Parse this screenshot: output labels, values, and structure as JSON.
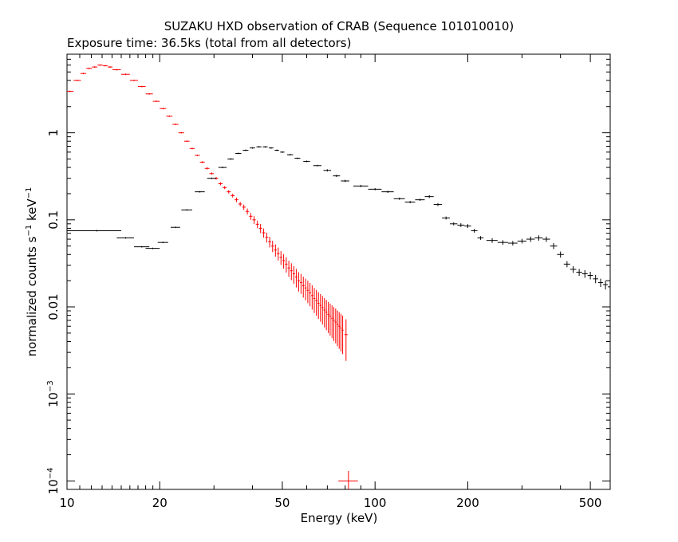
{
  "chart_data": {
    "type": "scatter",
    "title": "SUZAKU HXD observation of CRAB (Sequence 101010010)",
    "subtitle": "Exposure time: 36.5ks (total from all detectors)",
    "xlabel": "Energy (keV)",
    "ylabel_main": "normalized counts s",
    "ylabel_unit": "keV",
    "ylabel_exp": "−1",
    "x_scale": "log",
    "y_scale": "log",
    "xlim": [
      10,
      580
    ],
    "ylim": [
      8e-05,
      8
    ],
    "x_ticks": [
      {
        "value": 10,
        "label": "10"
      },
      {
        "value": 20,
        "label": "20"
      },
      {
        "value": 50,
        "label": "50"
      },
      {
        "value": 100,
        "label": "100"
      },
      {
        "value": 200,
        "label": "200"
      },
      {
        "value": 500,
        "label": "500"
      }
    ],
    "y_ticks": [
      {
        "value": 1,
        "label": "1"
      },
      {
        "value": 0.1,
        "label": "0.1"
      },
      {
        "value": 0.01,
        "label": "0.01"
      },
      {
        "value": 0.001,
        "mant": "10",
        "exp": "−3"
      },
      {
        "value": 0.0001,
        "mant": "10",
        "exp": "−4"
      }
    ],
    "grid": false,
    "legend": "none",
    "series": [
      {
        "color": "#ff0000",
        "x": [
          10.2,
          10.8,
          11.3,
          11.8,
          12.3,
          12.8,
          13.3,
          13.8,
          14.5,
          15.5,
          16.5,
          17.5,
          18.5,
          19.5,
          20.5,
          21.5,
          22.5,
          23.5,
          24.5,
          25.5,
          26.5,
          27.5,
          28.5,
          29.5,
          30.5,
          31.5,
          32.5,
          33.5,
          34.5,
          35.5,
          36.5,
          37.5,
          38.5,
          39.5,
          40.5,
          41.5,
          42.5,
          43.5,
          44.5,
          45.5,
          46.5,
          47.5,
          48.5,
          49.5,
          50.5,
          51.5,
          52.5,
          53.5,
          54.5,
          55.5,
          56.5,
          57.5,
          58.5,
          59.5,
          60.5,
          61.5,
          62.5,
          63.5,
          64.5,
          65.5,
          66.5,
          67.5,
          68.5,
          69.5,
          70.5,
          71.5,
          72.5,
          73.5,
          74.5,
          75.5,
          76.5,
          77.5,
          78.5,
          80.5
        ],
        "y": [
          3.0,
          4.0,
          4.8,
          5.5,
          5.7,
          6.0,
          5.9,
          5.7,
          5.3,
          4.7,
          4.0,
          3.4,
          2.8,
          2.3,
          1.9,
          1.55,
          1.25,
          1.0,
          0.8,
          0.66,
          0.55,
          0.46,
          0.39,
          0.34,
          0.3,
          0.26,
          0.235,
          0.21,
          0.19,
          0.17,
          0.152,
          0.14,
          0.125,
          0.11,
          0.1,
          0.089,
          0.08,
          0.071,
          0.063,
          0.056,
          0.05,
          0.045,
          0.041,
          0.037,
          0.034,
          0.031,
          0.028,
          0.026,
          0.024,
          0.022,
          0.02,
          0.019,
          0.0175,
          0.0165,
          0.0155,
          0.0145,
          0.0135,
          0.0125,
          0.0118,
          0.011,
          0.0104,
          0.0098,
          0.0092,
          0.0087,
          0.0082,
          0.0078,
          0.0074,
          0.007,
          0.0067,
          0.0063,
          0.006,
          0.0057,
          0.0054,
          0.0048
        ],
        "xerr": [
          0.3,
          0.3,
          0.25,
          0.25,
          0.25,
          0.25,
          0.25,
          0.25,
          0.45,
          0.5,
          0.5,
          0.5,
          0.5,
          0.5,
          0.5,
          0.5,
          0.5,
          0.5,
          0.5,
          0.5,
          0.5,
          0.5,
          0.5,
          0.5,
          0.5,
          0.5,
          0.5,
          0.5,
          0.5,
          0.5,
          0.5,
          0.5,
          0.5,
          0.5,
          0.5,
          0.5,
          0.5,
          0.5,
          0.5,
          0.5,
          0.5,
          0.5,
          0.5,
          0.5,
          0.5,
          0.5,
          0.5,
          0.5,
          0.5,
          0.5,
          0.5,
          0.5,
          0.5,
          0.5,
          0.5,
          0.5,
          0.5,
          0.5,
          0.5,
          0.5,
          0.5,
          0.5,
          0.5,
          0.5,
          0.5,
          0.5,
          0.5,
          0.5,
          0.5,
          0.5,
          0.5,
          0.5,
          0.5,
          1.0
        ],
        "yerr_frac": [
          0.02,
          0.02,
          0.02,
          0.02,
          0.02,
          0.02,
          0.02,
          0.02,
          0.02,
          0.02,
          0.02,
          0.02,
          0.02,
          0.02,
          0.02,
          0.02,
          0.02,
          0.02,
          0.02,
          0.02,
          0.02,
          0.025,
          0.03,
          0.03,
          0.035,
          0.04,
          0.04,
          0.045,
          0.05,
          0.06,
          0.06,
          0.07,
          0.08,
          0.09,
          0.1,
          0.1,
          0.12,
          0.12,
          0.13,
          0.14,
          0.15,
          0.16,
          0.17,
          0.18,
          0.19,
          0.2,
          0.21,
          0.22,
          0.23,
          0.24,
          0.25,
          0.26,
          0.27,
          0.28,
          0.29,
          0.3,
          0.31,
          0.32,
          0.33,
          0.34,
          0.35,
          0.36,
          0.37,
          0.38,
          0.39,
          0.4,
          0.41,
          0.42,
          0.43,
          0.44,
          0.45,
          0.46,
          0.47,
          0.5
        ]
      },
      {
        "color": "#ff0000",
        "x": [
          82
        ],
        "y": [
          0.0001
        ],
        "xerr": [
          6
        ],
        "yerr_frac": [
          0.3
        ]
      },
      {
        "color": "#000000",
        "x": [
          12.5,
          15.5,
          17.5,
          19.0,
          20.5,
          22.5,
          24.5,
          27.0,
          29.5,
          32.0,
          34.0,
          36.0,
          38.0,
          40.0,
          42.0,
          44.0,
          46.0,
          48.0,
          50.0,
          53.0,
          56.0,
          60.0,
          65.0,
          70.0,
          75.0,
          80.0,
          90.0,
          100.0,
          110.0,
          120.0,
          130.0,
          140.0,
          150.0,
          160.0,
          170.0,
          180.0,
          190.0,
          200.0,
          210.0,
          220.0,
          240.0,
          260.0,
          280.0,
          300.0,
          320.0,
          340.0,
          360.0,
          380.0,
          400.0,
          420.0,
          440.0,
          460.0,
          480.0,
          500.0,
          520.0,
          540.0,
          560.0,
          580.0
        ],
        "y": [
          0.075,
          0.062,
          0.049,
          0.047,
          0.055,
          0.082,
          0.13,
          0.21,
          0.3,
          0.4,
          0.5,
          0.58,
          0.63,
          0.67,
          0.69,
          0.69,
          0.67,
          0.63,
          0.6,
          0.56,
          0.51,
          0.47,
          0.42,
          0.37,
          0.32,
          0.28,
          0.245,
          0.225,
          0.21,
          0.175,
          0.16,
          0.17,
          0.185,
          0.15,
          0.105,
          0.09,
          0.087,
          0.085,
          0.075,
          0.062,
          0.058,
          0.055,
          0.054,
          0.057,
          0.06,
          0.062,
          0.06,
          0.05,
          0.04,
          0.031,
          0.027,
          0.025,
          0.024,
          0.023,
          0.021,
          0.019,
          0.018,
          0.017
        ],
        "xerr": [
          2.5,
          1.0,
          1.0,
          1.0,
          0.8,
          0.8,
          1.0,
          1.0,
          1.0,
          1.0,
          0.8,
          0.8,
          0.8,
          0.8,
          0.8,
          0.8,
          0.8,
          0.8,
          0.8,
          1.2,
          1.2,
          1.5,
          2.0,
          2.0,
          2.0,
          2.5,
          5.0,
          5.0,
          5.0,
          5.0,
          5.0,
          5.0,
          5.0,
          5.0,
          5.0,
          5.0,
          5.0,
          5.0,
          5.0,
          5.0,
          10.0,
          10.0,
          10.0,
          10.0,
          10.0,
          10.0,
          10.0,
          10.0,
          10.0,
          10.0,
          10.0,
          10.0,
          10.0,
          10.0,
          10.0,
          10.0,
          10.0,
          10.0
        ],
        "yerr_frac": [
          0.02,
          0.02,
          0.02,
          0.02,
          0.02,
          0.02,
          0.02,
          0.02,
          0.02,
          0.02,
          0.02,
          0.02,
          0.02,
          0.02,
          0.02,
          0.02,
          0.02,
          0.02,
          0.02,
          0.02,
          0.02,
          0.02,
          0.02,
          0.03,
          0.03,
          0.03,
          0.03,
          0.03,
          0.03,
          0.03,
          0.03,
          0.03,
          0.04,
          0.04,
          0.04,
          0.04,
          0.05,
          0.05,
          0.05,
          0.05,
          0.06,
          0.06,
          0.06,
          0.06,
          0.07,
          0.07,
          0.07,
          0.08,
          0.08,
          0.08,
          0.09,
          0.09,
          0.1,
          0.1,
          0.11,
          0.11,
          0.12,
          0.12
        ]
      }
    ]
  }
}
